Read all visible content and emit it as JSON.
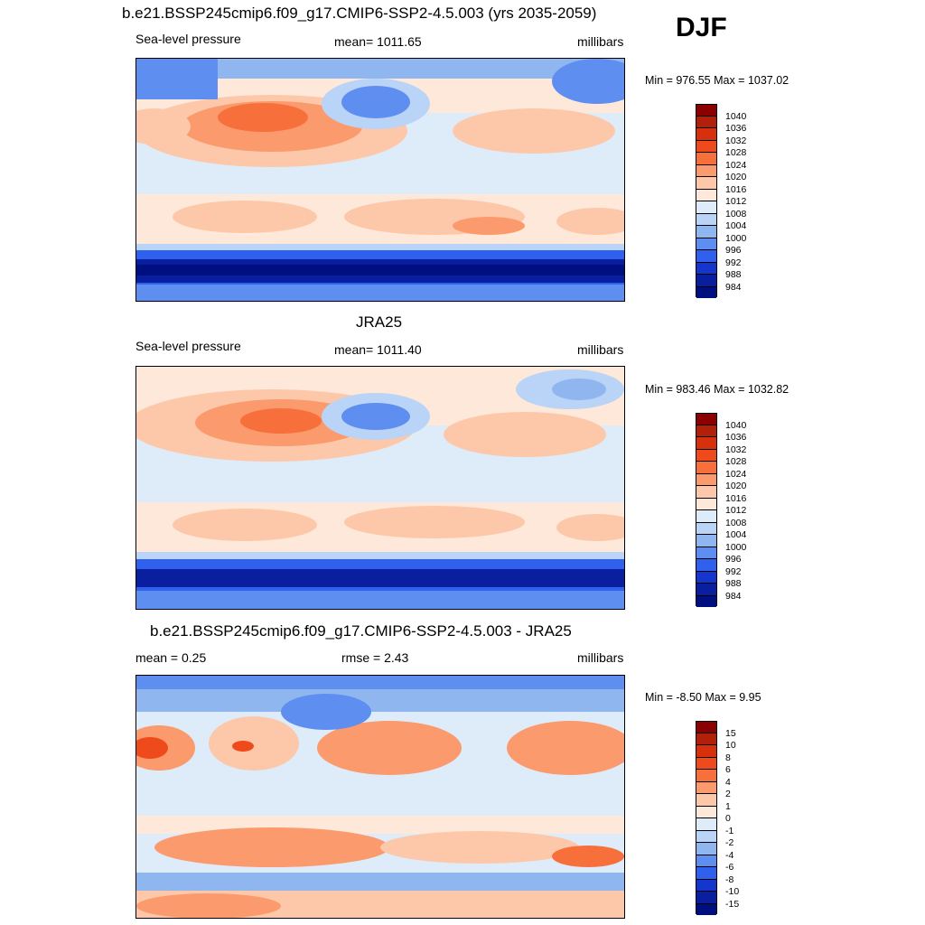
{
  "season": "DJF",
  "panels": [
    {
      "title": "b.e21.BSSP245cmip6.f09_g17.CMIP6-SSP2-4.5.003 (yrs 2035-2059)",
      "left_label": "Sea-level pressure",
      "center_label": "mean= 1011.65",
      "right_label": "millibars",
      "minmax": "Min = 976.55 Max = 1037.02",
      "colorbar_labels": [
        "1040",
        "1036",
        "1032",
        "1028",
        "1024",
        "1020",
        "1016",
        "1012",
        "1008",
        "1004",
        "1000",
        "996",
        "992",
        "988",
        "984"
      ]
    },
    {
      "title": "JRA25",
      "left_label": "Sea-level pressure",
      "center_label": "mean= 1011.40",
      "right_label": "millibars",
      "minmax": "Min = 983.46 Max = 1032.82",
      "colorbar_labels": [
        "1040",
        "1036",
        "1032",
        "1028",
        "1024",
        "1020",
        "1016",
        "1012",
        "1008",
        "1004",
        "1000",
        "996",
        "992",
        "988",
        "984"
      ]
    },
    {
      "title": "b.e21.BSSP245cmip6.f09_g17.CMIP6-SSP2-4.5.003 - JRA25",
      "left_label": "mean =   0.25",
      "center_label": "rmse =   2.43",
      "right_label": "millibars",
      "minmax": "Min =  -8.50 Max =   9.95",
      "colorbar_labels": [
        "15",
        "10",
        "8",
        "6",
        "4",
        "2",
        "1",
        "0",
        "-1",
        "-2",
        "-4",
        "-6",
        "-8",
        "-10",
        "-15"
      ]
    }
  ],
  "colors": {
    "abs_scale": [
      "#8b0000",
      "#b2200a",
      "#d6300c",
      "#ee4a1c",
      "#f7703c",
      "#fb9a6c",
      "#fdc8aa",
      "#fde8da",
      "#deecfa",
      "#b9d4f6",
      "#90b6f0",
      "#5d8ef0",
      "#2f60ee",
      "#1536cc",
      "#0a1ea0",
      "#000f80"
    ],
    "diff_scale": [
      "#8b0000",
      "#b2200a",
      "#d6300c",
      "#ee4a1c",
      "#f7703c",
      "#fb9a6c",
      "#fdc8aa",
      "#fde8da",
      "#deecfa",
      "#b9d4f6",
      "#90b6f0",
      "#5d8ef0",
      "#2f60ee",
      "#1536cc",
      "#0a1ea0",
      "#000f80"
    ]
  }
}
